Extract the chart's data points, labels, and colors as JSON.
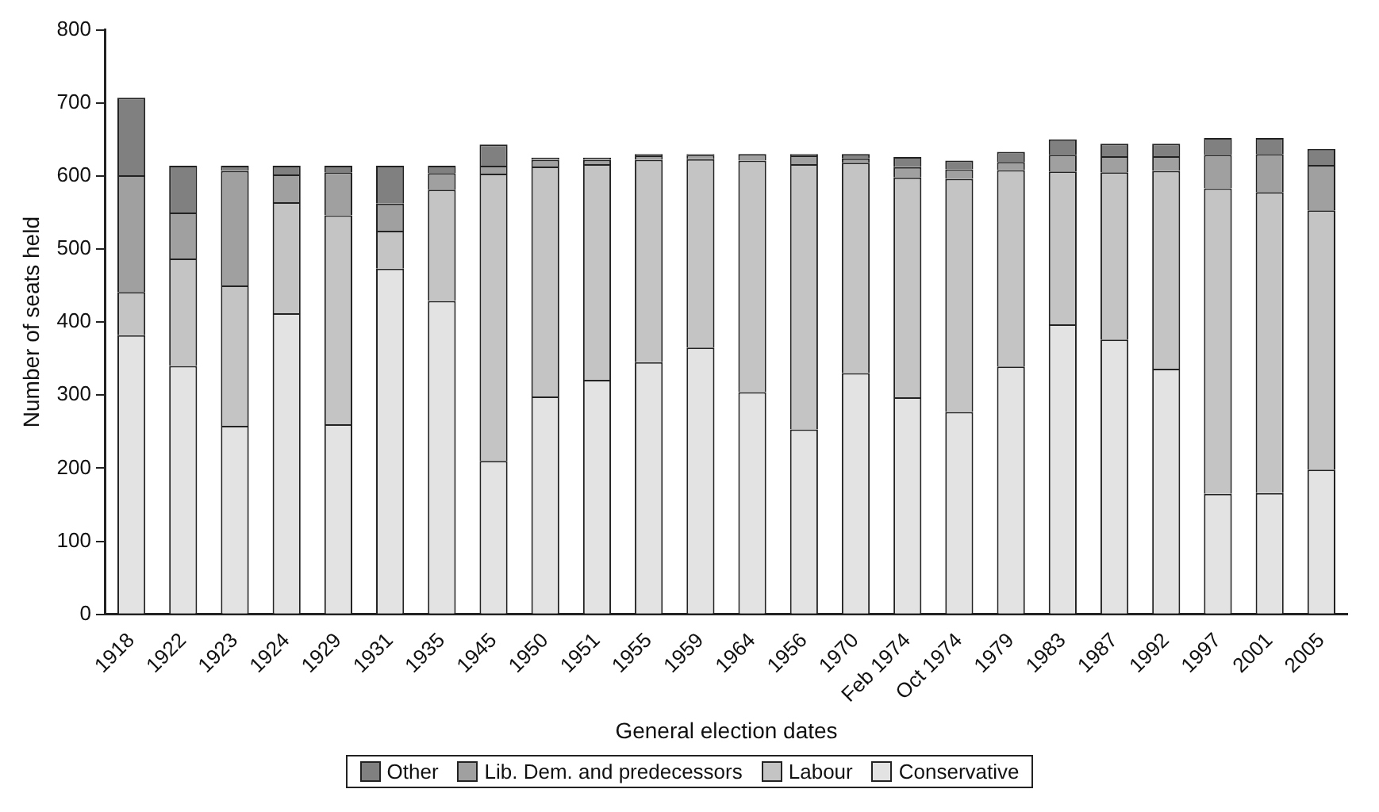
{
  "chart_data": {
    "type": "bar",
    "stacked": true,
    "xlabel": "General election dates",
    "ylabel": "Number of seats held",
    "categories": [
      "1918",
      "1922",
      "1923",
      "1924",
      "1929",
      "1931",
      "1935",
      "1945",
      "1950",
      "1951",
      "1955",
      "1959",
      "1964",
      "1956",
      "1970",
      "Feb 1974",
      "Oct 1974",
      "1979",
      "1983",
      "1987",
      "1992",
      "1997",
      "2001",
      "2005"
    ],
    "series": [
      {
        "name": "Conservative",
        "color": "#e3e3e3",
        "values": [
          382,
          340,
          258,
          412,
          260,
          473,
          429,
          210,
          298,
          321,
          345,
          365,
          304,
          253,
          330,
          297,
          277,
          339,
          397,
          376,
          336,
          165,
          166,
          198
        ]
      },
      {
        "name": "Labour",
        "color": "#c4c4c4",
        "values": [
          59,
          147,
          192,
          152,
          286,
          52,
          152,
          393,
          315,
          295,
          277,
          258,
          317,
          363,
          288,
          301,
          319,
          269,
          209,
          229,
          271,
          418,
          412,
          355
        ]
      },
      {
        "name": "Lib. Dem. and predecessors",
        "color": "#a0a0a0",
        "values": [
          160,
          63,
          157,
          38,
          59,
          37,
          23,
          11,
          9,
          6,
          6,
          6,
          9,
          12,
          6,
          14,
          13,
          11,
          23,
          22,
          20,
          46,
          52,
          62
        ]
      },
      {
        "name": "Other",
        "color": "#808080",
        "values": [
          106,
          64,
          7,
          12,
          9,
          52,
          10,
          29,
          3,
          3,
          2,
          1,
          0,
          2,
          6,
          14,
          12,
          14,
          21,
          17,
          17,
          23,
          22,
          22
        ]
      }
    ],
    "ylim": [
      0,
      800
    ],
    "yticks": [
      0,
      100,
      200,
      300,
      400,
      500,
      600,
      700,
      800
    ],
    "grid": false,
    "legend": "bottom"
  }
}
